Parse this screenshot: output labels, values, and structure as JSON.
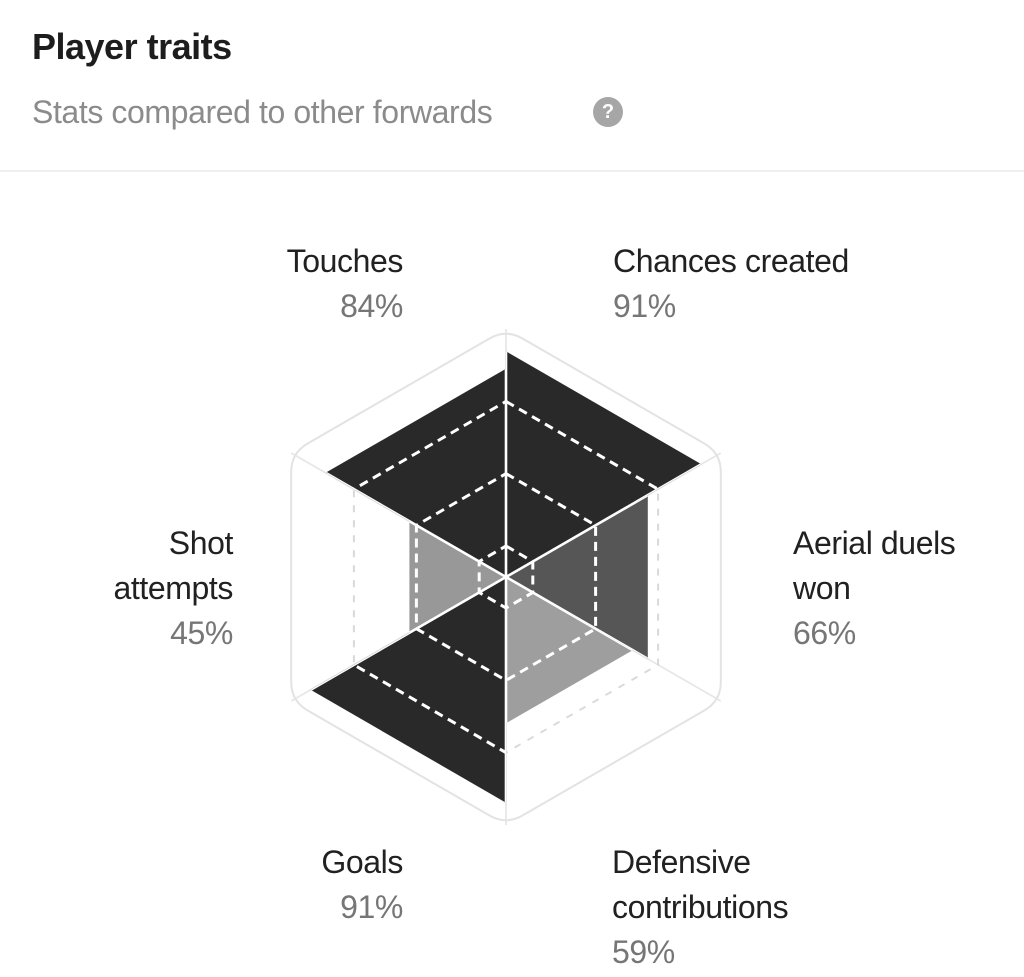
{
  "header": {
    "title": "Player traits",
    "subtitle": "Stats compared to other forwards",
    "help_label": "?"
  },
  "chart_data": {
    "type": "radar",
    "variant": "hexagon-sector-fill",
    "categories": [
      "Touches",
      "Chances created",
      "Aerial duels won",
      "Defensive contributions",
      "Goals",
      "Shot attempts"
    ],
    "values": [
      84,
      91,
      66,
      59,
      91,
      45
    ],
    "value_labels": [
      "84%",
      "91%",
      "66%",
      "59%",
      "91%",
      "45%"
    ],
    "scale": {
      "min": 0,
      "max": 100,
      "unit": "%"
    },
    "grid_rings": [
      0.125,
      0.417,
      0.708
    ],
    "sector_colors": [
      "#292929",
      "#292929",
      "#565656",
      "#9e9e9e",
      "#292929",
      "#989898"
    ],
    "grid_color_over_fill": "#ffffff",
    "grid_color_over_bg": "#d9d9d9",
    "spoke_color_over_bg": "#e7e7e7",
    "outline_color": "#e3e3e3",
    "legend": "none",
    "grid": "dashed"
  }
}
